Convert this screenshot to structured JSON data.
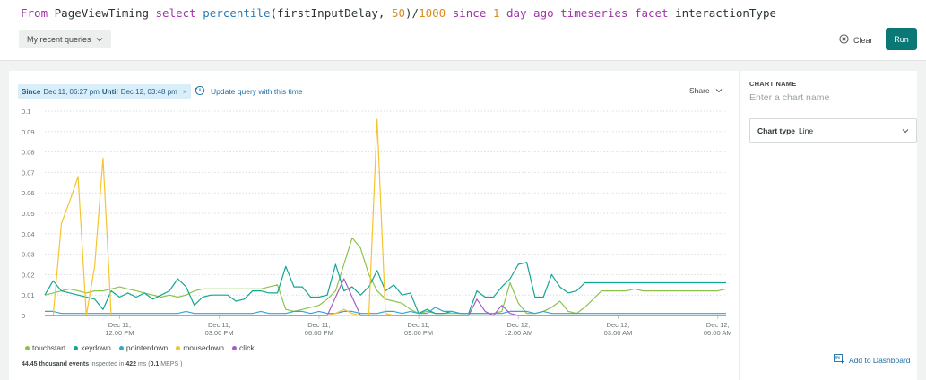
{
  "query": {
    "tokens": [
      {
        "text": "From ",
        "cls": "kw"
      },
      {
        "text": "PageViewTiming ",
        "cls": "ident"
      },
      {
        "text": "select ",
        "cls": "kw"
      },
      {
        "text": "percentile",
        "cls": "fn"
      },
      {
        "text": "(firstInputDelay, ",
        "cls": "ident"
      },
      {
        "text": "50",
        "cls": "num"
      },
      {
        "text": ")/",
        "cls": "ident"
      },
      {
        "text": "1000 ",
        "cls": "num"
      },
      {
        "text": "since ",
        "cls": "kw"
      },
      {
        "text": "1 ",
        "cls": "num"
      },
      {
        "text": "day ago ",
        "cls": "kw"
      },
      {
        "text": "timeseries ",
        "cls": "kw"
      },
      {
        "text": "facet ",
        "cls": "kw"
      },
      {
        "text": "interactionType",
        "cls": "ident"
      }
    ],
    "recent_label": "My recent queries",
    "clear_label": "Clear",
    "run_label": "Run"
  },
  "chart_header": {
    "since_word": "Since",
    "since_value": "Dec 11, 06:27 pm",
    "until_word": "Until",
    "until_value": "Dec 12, 03:48 pm",
    "close_glyph": "×",
    "update_label": "Update query with this time",
    "share_label": "Share"
  },
  "side": {
    "chart_name_label": "CHART NAME",
    "chart_name_placeholder": "Enter a chart name",
    "chart_type_label": "Chart type",
    "chart_type_value": "Line",
    "add_dashboard_label": "Add to Dashboard"
  },
  "footer": {
    "events": "44.45 thousand events",
    "inspected": " inspected in ",
    "ms": "422",
    "ms_unit": " ms (",
    "meps": "0.1",
    "meps_unit": "MEPS",
    "close": ")"
  },
  "colors": {
    "touchstart": "#8bc34a",
    "keydown": "#11a693",
    "pointerdown": "#31a6d5",
    "mousedown": "#f4c430",
    "click": "#a25ec6"
  },
  "chart_data": {
    "type": "line",
    "ylim": [
      0,
      0.1
    ],
    "yticks": [
      "0.1",
      "0.09",
      "0.08",
      "0.07",
      "0.06",
      "0.05",
      "0.04",
      "0.03",
      "0.02",
      "0.01",
      "0"
    ],
    "xticks": [
      {
        "t": 9,
        "label1": "Dec 11,",
        "label2": "12:00 PM"
      },
      {
        "t": 21,
        "label1": "Dec 11,",
        "label2": "03:00 PM"
      },
      {
        "t": 33,
        "label1": "Dec 11,",
        "label2": "06:00 PM"
      },
      {
        "t": 45,
        "label1": "Dec 11,",
        "label2": "09:00 PM"
      },
      {
        "t": 57,
        "label1": "Dec 12,",
        "label2": "12:00 AM"
      },
      {
        "t": 69,
        "label1": "Dec 12,",
        "label2": "03:00 AM"
      },
      {
        "t": 81,
        "label1": "Dec 12,",
        "label2": "06:00 AM"
      }
    ],
    "n_points": 83,
    "series": [
      {
        "name": "touchstart",
        "values": [
          0.01,
          0.011,
          0.012,
          0.013,
          0.012,
          0.011,
          0.012,
          0.012,
          0.013,
          0.014,
          0.013,
          0.012,
          0.011,
          0.01,
          0.009,
          0.01,
          0.009,
          0.01,
          0.012,
          0.013,
          0.013,
          0.013,
          0.013,
          0.013,
          0.013,
          0.013,
          0.013,
          0.014,
          0.015,
          0.003,
          0.002,
          0.003,
          0.004,
          0.005,
          0.008,
          0.012,
          0.025,
          0.038,
          0.033,
          0.02,
          0.012,
          0.008,
          0.007,
          0.006,
          0.003,
          0.001,
          0.002,
          0.001,
          0.001,
          0.001,
          0.001,
          0.001,
          0.001,
          0.001,
          0.001,
          0.002,
          0.016,
          0.006,
          0.001,
          0.001,
          0.002,
          0.004,
          0.007,
          0.002,
          0.001,
          0.004,
          0.008,
          0.012,
          0.012,
          0.012,
          0.012,
          0.013,
          0.012,
          0.012,
          0.012,
          0.012,
          0.012,
          0.012,
          0.012,
          0.012,
          0.012,
          0.012,
          0.013
        ]
      },
      {
        "name": "keydown",
        "values": [
          0.01,
          0.017,
          0.012,
          0.011,
          0.01,
          0.009,
          0.008,
          0.003,
          0.012,
          0.009,
          0.011,
          0.009,
          0.011,
          0.008,
          0.01,
          0.012,
          0.018,
          0.014,
          0.005,
          0.009,
          0.01,
          0.01,
          0.01,
          0.007,
          0.008,
          0.012,
          0.012,
          0.011,
          0.011,
          0.024,
          0.014,
          0.014,
          0.009,
          0.009,
          0.01,
          0.025,
          0.012,
          0.014,
          0.01,
          0.014,
          0.022,
          0.012,
          0.015,
          0.01,
          0.011,
          0.001,
          0.003,
          0.001,
          0.001,
          0.002,
          0.001,
          0.001,
          0.012,
          0.009,
          0.009,
          0.014,
          0.018,
          0.025,
          0.026,
          0.009,
          0.009,
          0.02,
          0.014,
          0.011,
          0.012,
          0.016,
          0.016,
          0.016,
          0.016,
          0.016,
          0.016,
          0.016,
          0.016,
          0.016,
          0.016,
          0.016,
          0.016,
          0.016,
          0.016,
          0.016,
          0.016,
          0.016,
          0.016
        ]
      },
      {
        "name": "pointerdown",
        "values": [
          0.002,
          0.002,
          0.001,
          0.001,
          0.001,
          0.001,
          0.001,
          0.001,
          0.001,
          0.001,
          0.001,
          0.001,
          0.001,
          0.001,
          0.001,
          0.001,
          0.001,
          0.002,
          0.001,
          0.001,
          0.001,
          0.001,
          0.001,
          0.001,
          0.001,
          0.001,
          0.002,
          0.001,
          0.001,
          0.001,
          0.002,
          0.002,
          0.001,
          0.002,
          0.001,
          0.001,
          0.002,
          0.002,
          0.001,
          0.001,
          0.001,
          0.002,
          0.002,
          0.001,
          0.002,
          0.001,
          0.001,
          0.004,
          0.002,
          0.002,
          0.001,
          0.001,
          0.001,
          0.001,
          0.001,
          0.001,
          0.002,
          0.002,
          0.002,
          0.001,
          0.002,
          0.001,
          0.001,
          0.001,
          0.001,
          0.001,
          0.001,
          0.001,
          0.001,
          0.001,
          0.001,
          0.001,
          0.001,
          0.001,
          0.001,
          0.001,
          0.001,
          0.001,
          0.001,
          0.001,
          0.001,
          0.001,
          0.001
        ]
      },
      {
        "name": "mousedown",
        "values": [
          0,
          0,
          0.045,
          0.056,
          0.068,
          0,
          0.024,
          0.077,
          0,
          0,
          0,
          0,
          0,
          0,
          0,
          0,
          0,
          0,
          0,
          0,
          0,
          0,
          0,
          0,
          0,
          0,
          0,
          0,
          0,
          0,
          0,
          0,
          0,
          0,
          0,
          0.001,
          0.003,
          0.001,
          0,
          0,
          0.096,
          0.001,
          0,
          0,
          0,
          0,
          0,
          0,
          0,
          0,
          0,
          0,
          0,
          0,
          0,
          0,
          0,
          0,
          0,
          0,
          0,
          0,
          0,
          0,
          0,
          0,
          0,
          0,
          0,
          0,
          0,
          0,
          0,
          0,
          0,
          0,
          0,
          0,
          0,
          0,
          0,
          0,
          0
        ]
      },
      {
        "name": "click",
        "values": [
          0,
          0,
          0,
          0,
          0,
          0,
          0,
          0,
          0,
          0,
          0,
          0,
          0,
          0,
          0,
          0,
          0,
          0,
          0,
          0,
          0,
          0,
          0,
          0,
          0,
          0,
          0,
          0,
          0,
          0,
          0,
          0,
          0,
          0,
          0,
          0.009,
          0.018,
          0.009,
          0,
          0,
          0,
          0,
          0,
          0,
          0,
          0,
          0,
          0,
          0,
          0,
          0,
          0,
          0.008,
          0.002,
          0,
          0.005,
          0.001,
          0,
          0,
          0,
          0,
          0,
          0,
          0,
          0,
          0,
          0,
          0,
          0,
          0,
          0,
          0,
          0,
          0,
          0,
          0,
          0,
          0,
          0,
          0,
          0,
          0,
          0
        ]
      }
    ],
    "legend": [
      "touchstart",
      "keydown",
      "pointerdown",
      "mousedown",
      "click"
    ],
    "grid": true
  }
}
